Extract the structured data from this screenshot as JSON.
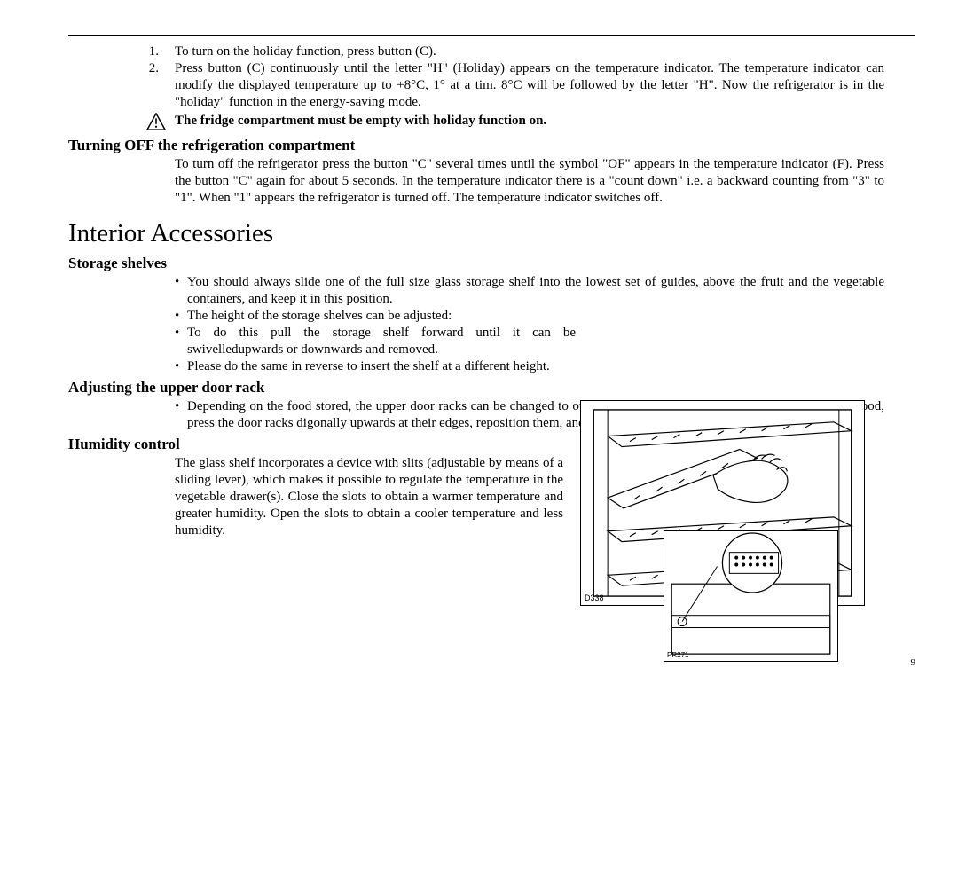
{
  "ol": {
    "item1_num": "1.",
    "item1_text": "To turn on the holiday function, press button (C).",
    "item2_num": "2.",
    "item2_text": "Press button (C) continuously until the letter \"H\" (Holiday) appears on the temperature indicator. The temperature indicator can modify the displayed temperature up to +8°C, 1° at a tim. 8°C will be followed by the letter \"H\". Now the refrigerator is in the \"holiday\" function in the energy-saving mode."
  },
  "warning_text": "The fridge compartment must be empty with holiday function on.",
  "h2_off": "Turning OFF the refrigeration compartment",
  "off_para": "To turn off the refrigerator press the button \"C\" several times until the symbol \"OF\" appears in the temperature indicator (F). Press the button \"C\" again for about 5 seconds. In the temperature indicator there is a \"count down\" i.e. a backward counting from \"3\" to \"1\". When \"1\" appears the refrigerator is turned off. The temperature indicator switches off.",
  "h1_interior": "Interior Accessories",
  "h2_storage": "Storage shelves",
  "storage_b1": "You should always slide one of the full size glass storage shelf into the lowest set of guides, above the fruit and the vegetable containers, and keep it in this position.",
  "storage_b2": "The height of the storage shelves can be adjusted:",
  "storage_b3": "To do this pull the storage shelf forward until it can be swivelledupwards or downwards and removed.",
  "storage_b4": "Please do the same in reverse to insert the shelf at a different height.",
  "h2_door": "Adjusting the upper door rack",
  "door_b1": "Depending on the food stored, the upper door racks can be changed to other holders or removed. Take out the refrigerators food, press the door racks digonally upwards at their edges, reposition them, and press them back into place.",
  "h2_humidity": "Humidity control",
  "humidity_text": "The glass shelf incorporates a device with slits (adjustable by means of a sliding lever), which makes it possible to regulate the temperature in the vegetable drawer(s). Close the slots to obtain a warmer temperature and greater humidity. Open the slots to obtain a cooler temperature and less humidity.",
  "fig1_label": "D338",
  "fig2_label": "PR271",
  "page_number": "9",
  "bullet": "•"
}
